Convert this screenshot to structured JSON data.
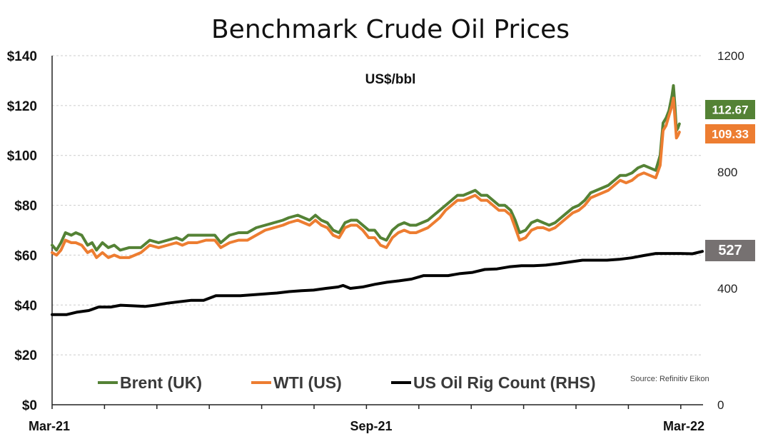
{
  "chart_data": {
    "type": "line",
    "title": "Benchmark Crude Oil Prices",
    "unit_label": "US$/bbl",
    "source": "Source: Refinitiv Eikon",
    "x_tick_labels": [
      "Mar-21",
      "Sep-21",
      "Mar-22"
    ],
    "y_left": {
      "range": [
        0,
        140
      ],
      "step": 20,
      "tick_labels": [
        "$0",
        "$20",
        "$40",
        "$60",
        "$80",
        "$100",
        "$120",
        "$140"
      ]
    },
    "y_right": {
      "range": [
        0,
        1200
      ],
      "tick_labels": [
        "0",
        "400",
        "800",
        "1200"
      ]
    },
    "grid": true,
    "legend_position": "bottom",
    "colors": {
      "brent": "#548235",
      "wti": "#ed7d31",
      "rigs": "#000000",
      "rig_label_bg": "#767171"
    },
    "series": [
      {
        "name": "Brent (UK)",
        "key": "brent",
        "axis": "left",
        "end_label": "112.67",
        "values": [
          [
            0,
            64
          ],
          [
            3,
            62
          ],
          [
            6,
            65
          ],
          [
            9,
            69
          ],
          [
            13,
            68
          ],
          [
            16,
            69
          ],
          [
            20,
            68
          ],
          [
            24,
            64
          ],
          [
            27,
            65
          ],
          [
            30,
            62
          ],
          [
            34,
            65
          ],
          [
            38,
            63
          ],
          [
            42,
            64
          ],
          [
            46,
            62
          ],
          [
            52,
            63
          ],
          [
            60,
            63
          ],
          [
            66,
            66
          ],
          [
            72,
            65
          ],
          [
            78,
            66
          ],
          [
            84,
            67
          ],
          [
            88,
            66
          ],
          [
            92,
            68
          ],
          [
            98,
            68
          ],
          [
            104,
            68
          ],
          [
            110,
            68
          ],
          [
            114,
            65
          ],
          [
            120,
            68
          ],
          [
            126,
            69
          ],
          [
            132,
            69
          ],
          [
            138,
            71
          ],
          [
            144,
            72
          ],
          [
            150,
            73
          ],
          [
            156,
            74
          ],
          [
            160,
            75
          ],
          [
            166,
            76
          ],
          [
            170,
            75
          ],
          [
            174,
            74
          ],
          [
            178,
            76
          ],
          [
            182,
            74
          ],
          [
            186,
            73
          ],
          [
            190,
            70
          ],
          [
            194,
            69
          ],
          [
            198,
            73
          ],
          [
            202,
            74
          ],
          [
            206,
            74
          ],
          [
            210,
            72
          ],
          [
            214,
            70
          ],
          [
            218,
            70
          ],
          [
            222,
            67
          ],
          [
            226,
            66
          ],
          [
            230,
            70
          ],
          [
            234,
            72
          ],
          [
            238,
            73
          ],
          [
            242,
            72
          ],
          [
            246,
            72
          ],
          [
            250,
            73
          ],
          [
            254,
            74
          ],
          [
            258,
            76
          ],
          [
            262,
            78
          ],
          [
            266,
            80
          ],
          [
            270,
            82
          ],
          [
            274,
            84
          ],
          [
            278,
            84
          ],
          [
            282,
            85
          ],
          [
            286,
            86
          ],
          [
            290,
            84
          ],
          [
            294,
            84
          ],
          [
            298,
            82
          ],
          [
            302,
            80
          ],
          [
            306,
            80
          ],
          [
            310,
            78
          ],
          [
            313,
            74
          ],
          [
            316,
            69
          ],
          [
            320,
            70
          ],
          [
            324,
            73
          ],
          [
            328,
            74
          ],
          [
            332,
            73
          ],
          [
            336,
            72
          ],
          [
            340,
            73
          ],
          [
            344,
            75
          ],
          [
            348,
            77
          ],
          [
            352,
            79
          ],
          [
            356,
            80
          ],
          [
            360,
            82
          ],
          [
            364,
            85
          ],
          [
            368,
            86
          ],
          [
            372,
            87
          ],
          [
            376,
            88
          ],
          [
            380,
            90
          ],
          [
            384,
            92
          ],
          [
            388,
            92
          ],
          [
            392,
            93
          ],
          [
            396,
            95
          ],
          [
            400,
            96
          ],
          [
            404,
            95
          ],
          [
            408,
            94
          ],
          [
            411,
            100
          ],
          [
            413,
            113
          ],
          [
            415,
            115
          ],
          [
            417,
            118
          ],
          [
            419,
            124
          ],
          [
            420,
            128
          ],
          [
            421,
            120
          ],
          [
            422,
            110
          ],
          [
            423,
            111
          ],
          [
            424,
            112.67
          ]
        ]
      },
      {
        "name": "WTI (US)",
        "key": "wti",
        "axis": "left",
        "end_label": "109.33",
        "values": [
          [
            0,
            61
          ],
          [
            3,
            60
          ],
          [
            6,
            62
          ],
          [
            9,
            66
          ],
          [
            13,
            65
          ],
          [
            16,
            65
          ],
          [
            20,
            64
          ],
          [
            24,
            61
          ],
          [
            27,
            62
          ],
          [
            30,
            59
          ],
          [
            34,
            61
          ],
          [
            38,
            59
          ],
          [
            42,
            60
          ],
          [
            46,
            59
          ],
          [
            52,
            59
          ],
          [
            60,
            61
          ],
          [
            66,
            64
          ],
          [
            72,
            63
          ],
          [
            78,
            64
          ],
          [
            84,
            65
          ],
          [
            88,
            64
          ],
          [
            92,
            65
          ],
          [
            98,
            65
          ],
          [
            104,
            66
          ],
          [
            110,
            66
          ],
          [
            114,
            63
          ],
          [
            120,
            65
          ],
          [
            126,
            66
          ],
          [
            132,
            66
          ],
          [
            138,
            68
          ],
          [
            144,
            70
          ],
          [
            150,
            71
          ],
          [
            156,
            72
          ],
          [
            160,
            73
          ],
          [
            166,
            74
          ],
          [
            170,
            73
          ],
          [
            174,
            72
          ],
          [
            178,
            74
          ],
          [
            182,
            72
          ],
          [
            186,
            71
          ],
          [
            190,
            68
          ],
          [
            194,
            67
          ],
          [
            198,
            71
          ],
          [
            202,
            72
          ],
          [
            206,
            72
          ],
          [
            210,
            70
          ],
          [
            214,
            67
          ],
          [
            218,
            67
          ],
          [
            222,
            64
          ],
          [
            226,
            63
          ],
          [
            230,
            67
          ],
          [
            234,
            69
          ],
          [
            238,
            70
          ],
          [
            242,
            69
          ],
          [
            246,
            69
          ],
          [
            250,
            70
          ],
          [
            254,
            71
          ],
          [
            258,
            73
          ],
          [
            262,
            75
          ],
          [
            266,
            78
          ],
          [
            270,
            80
          ],
          [
            274,
            82
          ],
          [
            278,
            82
          ],
          [
            282,
            83
          ],
          [
            286,
            84
          ],
          [
            290,
            82
          ],
          [
            294,
            82
          ],
          [
            298,
            80
          ],
          [
            302,
            78
          ],
          [
            306,
            78
          ],
          [
            310,
            76
          ],
          [
            313,
            71
          ],
          [
            316,
            66
          ],
          [
            320,
            67
          ],
          [
            324,
            70
          ],
          [
            328,
            71
          ],
          [
            332,
            71
          ],
          [
            336,
            70
          ],
          [
            340,
            71
          ],
          [
            344,
            73
          ],
          [
            348,
            75
          ],
          [
            352,
            77
          ],
          [
            356,
            78
          ],
          [
            360,
            80
          ],
          [
            364,
            83
          ],
          [
            368,
            84
          ],
          [
            372,
            85
          ],
          [
            376,
            86
          ],
          [
            380,
            88
          ],
          [
            384,
            90
          ],
          [
            388,
            89
          ],
          [
            392,
            90
          ],
          [
            396,
            92
          ],
          [
            400,
            93
          ],
          [
            404,
            92
          ],
          [
            408,
            91
          ],
          [
            411,
            96
          ],
          [
            413,
            110
          ],
          [
            415,
            112
          ],
          [
            417,
            116
          ],
          [
            419,
            120
          ],
          [
            420,
            123
          ],
          [
            421,
            115
          ],
          [
            422,
            107
          ],
          [
            423,
            108
          ],
          [
            424,
            109.33
          ]
        ]
      },
      {
        "name": "US Oil Rig Count (RHS)",
        "key": "rigs",
        "axis": "right",
        "end_label": "527",
        "values": [
          [
            0,
            310
          ],
          [
            12,
            310
          ],
          [
            20,
            318
          ],
          [
            30,
            324
          ],
          [
            38,
            336
          ],
          [
            48,
            336
          ],
          [
            56,
            342
          ],
          [
            66,
            340
          ],
          [
            76,
            338
          ],
          [
            84,
            342
          ],
          [
            94,
            349
          ],
          [
            104,
            354
          ],
          [
            114,
            359
          ],
          [
            124,
            359
          ],
          [
            134,
            375
          ],
          [
            144,
            375
          ],
          [
            154,
            375
          ],
          [
            164,
            378
          ],
          [
            174,
            381
          ],
          [
            184,
            384
          ],
          [
            194,
            389
          ],
          [
            204,
            392
          ],
          [
            214,
            394
          ],
          [
            224,
            400
          ],
          [
            234,
            405
          ],
          [
            238,
            410
          ],
          [
            244,
            400
          ],
          [
            254,
            405
          ],
          [
            264,
            414
          ],
          [
            274,
            421
          ],
          [
            284,
            426
          ],
          [
            294,
            432
          ],
          [
            304,
            444
          ],
          [
            314,
            444
          ],
          [
            324,
            444
          ],
          [
            334,
            451
          ],
          [
            344,
            455
          ],
          [
            354,
            465
          ],
          [
            364,
            467
          ],
          [
            374,
            474
          ],
          [
            384,
            478
          ],
          [
            394,
            478
          ],
          [
            404,
            480
          ],
          [
            414,
            485
          ],
          [
            424,
            491
          ],
          [
            434,
            497
          ],
          [
            444,
            497
          ],
          [
            454,
            497
          ],
          [
            464,
            500
          ],
          [
            474,
            505
          ],
          [
            484,
            513
          ],
          [
            494,
            520
          ],
          [
            504,
            520
          ],
          [
            514,
            520
          ],
          [
            524,
            519
          ],
          [
            532,
            527
          ]
        ]
      }
    ]
  }
}
